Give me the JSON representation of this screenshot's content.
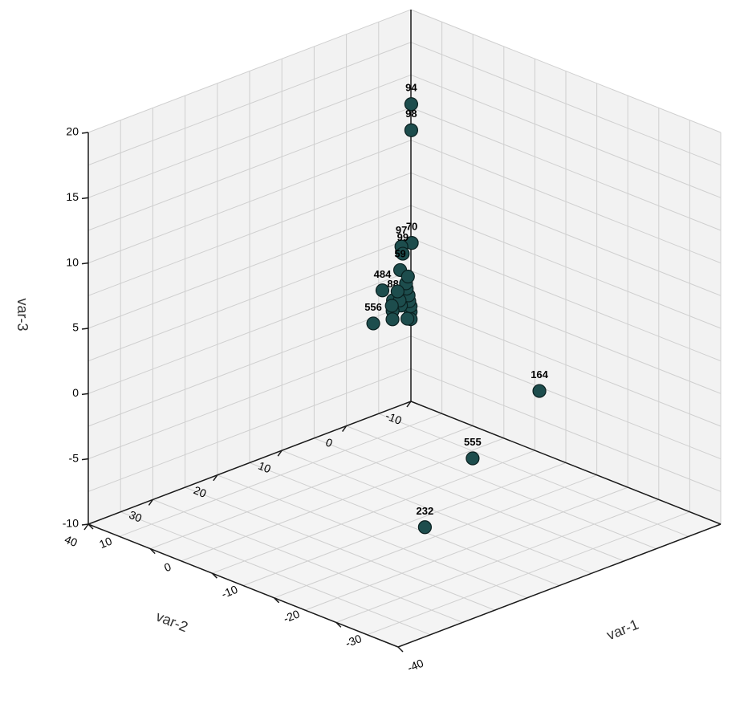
{
  "chart_data": {
    "type": "scatter",
    "projection": "3d",
    "axes": {
      "x": {
        "label": "var-1",
        "range": [
          -40,
          10
        ],
        "ticks": [
          -40,
          -30,
          -20,
          -10,
          0,
          10
        ]
      },
      "y": {
        "label": "var-2",
        "range": [
          -10,
          40
        ],
        "ticks": [
          -10,
          0,
          10,
          20,
          30,
          40
        ]
      },
      "z": {
        "label": "var-3",
        "range": [
          -10,
          20
        ],
        "ticks": [
          -10,
          -5,
          0,
          5,
          10,
          15,
          20
        ]
      }
    },
    "grid": true,
    "marker_color": "#1d4d4d",
    "points": [
      {
        "label": "94",
        "x": 1.2,
        "y": -1.6,
        "z": 16.0
      },
      {
        "label": "98",
        "x": 1.2,
        "y": -1.6,
        "z": 14.0
      },
      {
        "label": "70",
        "x": 0.8,
        "y": -1.3,
        "z": 5.5
      },
      {
        "label": "97",
        "x": 0.6,
        "y": 0.5,
        "z": 5.6
      },
      {
        "label": "99",
        "x": 0.9,
        "y": 0.0,
        "z": 4.9
      },
      {
        "label": "59",
        "x": 0.7,
        "y": 0.6,
        "z": 3.8
      },
      {
        "label": "484",
        "x": -0.5,
        "y": 4.5,
        "z": 3.2
      },
      {
        "label": "88",
        "x": 0.4,
        "y": 2.0,
        "z": 1.8
      },
      {
        "label": "164",
        "x": -30.0,
        "y": 8.5,
        "z": 1.8
      },
      {
        "label": "556",
        "x": 1.5,
        "y": 4.0,
        "z": 0.2
      },
      {
        "label": "555",
        "x": -13.5,
        "y": 3.0,
        "z": -7.5
      },
      {
        "label": "232",
        "x": -11.0,
        "y": 8.0,
        "z": -12.3
      },
      {
        "label": "",
        "x": 1.5,
        "y": -1.8,
        "z": 0.0
      },
      {
        "label": "",
        "x": 1.3,
        "y": -1.6,
        "z": 0.5
      },
      {
        "label": "",
        "x": 1.1,
        "y": -1.2,
        "z": 1.0
      },
      {
        "label": "",
        "x": 1.0,
        "y": -1.0,
        "z": 1.5
      },
      {
        "label": "",
        "x": 1.2,
        "y": -0.9,
        "z": 2.0
      },
      {
        "label": "",
        "x": 1.0,
        "y": -0.6,
        "z": 2.5
      },
      {
        "label": "",
        "x": 0.9,
        "y": -0.8,
        "z": 3.0
      },
      {
        "label": "",
        "x": 1.4,
        "y": -0.2,
        "z": 0.8
      },
      {
        "label": "",
        "x": 1.2,
        "y": 0.2,
        "z": 1.3
      },
      {
        "label": "",
        "x": 0.8,
        "y": 0.9,
        "z": 2.2
      },
      {
        "label": "",
        "x": 1.5,
        "y": 1.0,
        "z": 0.6
      },
      {
        "label": "",
        "x": 1.0,
        "y": 1.6,
        "z": 1.2
      },
      {
        "label": "",
        "x": 1.6,
        "y": -1.9,
        "z": -0.6
      },
      {
        "label": "",
        "x": 1.4,
        "y": -1.2,
        "z": -0.4
      },
      {
        "label": "",
        "x": 1.1,
        "y": 1.4,
        "z": 0.1
      }
    ]
  }
}
